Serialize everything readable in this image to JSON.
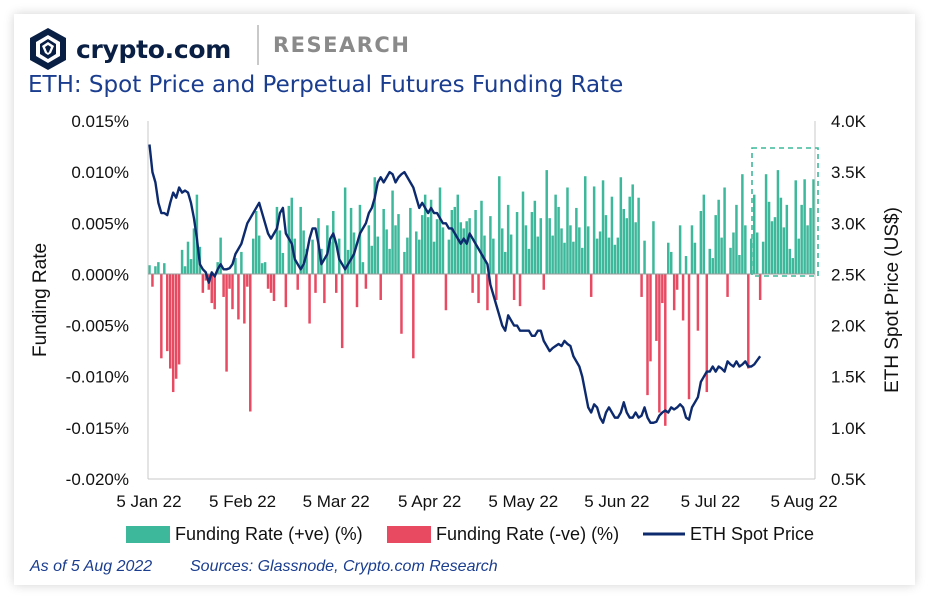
{
  "header": {
    "brand": "crypto.com",
    "section": "RESEARCH",
    "title": "ETH: Spot Price and Perpetual Futures Funding Rate"
  },
  "footer": {
    "as_of": "As of 5 Aug 2022",
    "sources": "Sources: Glassnode, Crypto.com Research"
  },
  "colors": {
    "positive": "#3db89a",
    "negative": "#e84a62",
    "price": "#0d2a6e",
    "brand": "#0a1f44",
    "title": "#1a3d8f",
    "highlight": "#3db89a"
  },
  "chart_data": {
    "type": "bar",
    "ylabel": "Funding Rate",
    "y2label": "ETH Spot Price (US$)",
    "ylim": [
      -0.02,
      0.015
    ],
    "y2lim": [
      500,
      4000
    ],
    "y_ticks": [
      "0.015%",
      "0.010%",
      "0.005%",
      "0.000%",
      "-0.005%",
      "-0.010%",
      "-0.015%",
      "-0.020%"
    ],
    "y2_ticks": [
      "4.0K",
      "3.5K",
      "3.0K",
      "2.5K",
      "2.0K",
      "1.5K",
      "1.0K",
      "0.5K"
    ],
    "x_ticks": [
      "5 Jan 22",
      "5 Feb 22",
      "5 Mar 22",
      "5 Apr 22",
      "5 May 22",
      "5 Jun 22",
      "5 Jul 22",
      "5 Aug 22"
    ],
    "legend": [
      "Funding Rate (+ve) (%)",
      "Funding Rate (-ve) (%)",
      "ETH Spot Price"
    ],
    "legend_position": "bottom",
    "grid": false,
    "highlight_box": "last 3 weeks (approx. 16 Jul – 5 Aug 2022)",
    "funding_rate_series": {
      "name": "Funding Rate (%)",
      "start": "5 Jan 22",
      "interval_days": 1,
      "values": [
        0.0009,
        -0.0012,
        0.0008,
        0.0012,
        -0.0082,
        0.0011,
        -0.0075,
        -0.0092,
        -0.0115,
        -0.0102,
        -0.0088,
        0.0024,
        0.0008,
        0.0032,
        0.0015,
        0.0045,
        0.0078,
        0.0027,
        -0.0018,
        -0.0006,
        -0.0015,
        -0.0028,
        -0.0034,
        0.0012,
        0.0036,
        -0.0022,
        -0.0095,
        -0.0014,
        -0.0034,
        0.0016,
        -0.0044,
        0.0022,
        -0.0048,
        -0.0012,
        -0.0134,
        0.0035,
        0.0062,
        0.0038,
        0.0011,
        0.0012,
        -0.0014,
        -0.0018,
        -0.0026,
        0.0066,
        0.0043,
        0.0021,
        -0.0032,
        0.0067,
        0.0075,
        0.0035,
        -0.0015,
        0.0066,
        0.0043,
        0.0025,
        -0.0048,
        0.0034,
        -0.0018,
        0.0055,
        0.0025,
        -0.0028,
        0.0048,
        0.0032,
        0.0062,
        -0.0018,
        0.0035,
        -0.0072,
        0.0085,
        0.0024,
        0.0065,
        0.0041,
        -0.0032,
        0.0068,
        0.0012,
        -0.0014,
        0.0048,
        0.0028,
        0.0095,
        0.0037,
        -0.0025,
        0.0064,
        0.0044,
        0.0025,
        0.0082,
        0.0048,
        0.0059,
        -0.0058,
        0.0022,
        0.0036,
        0.0065,
        -0.0082,
        0.0042,
        0.0034,
        0.0058,
        0.0078,
        0.0056,
        0.0073,
        0.0032,
        0.0054,
        0.0085,
        0.0046,
        -0.0035,
        0.0034,
        0.0063,
        0.0066,
        0.0078,
        0.0051,
        0.0045,
        0.0052,
        0.0055,
        -0.0018,
        0.0063,
        -0.0028,
        0.0072,
        0.0038,
        -0.0035,
        0.0057,
        0.0035,
        -0.0025,
        0.0096,
        0.0045,
        0.0022,
        0.0068,
        0.0039,
        -0.0025,
        0.0061,
        -0.0031,
        0.0081,
        0.0048,
        0.0025,
        0.0061,
        0.0072,
        0.0037,
        0.0055,
        -0.0015,
        0.0102,
        0.0055,
        0.0038,
        0.0078,
        0.0066,
        0.0045,
        0.0031,
        0.0085,
        0.0048,
        0.0032,
        0.0065,
        0.0046,
        0.0026,
        0.0096,
        0.0047,
        -0.0022,
        0.0086,
        0.0035,
        0.0042,
        0.0092,
        0.0058,
        0.0036,
        0.0076,
        0.0029,
        0.0036,
        0.0095,
        0.0064,
        0.0055,
        0.0076,
        0.0088,
        0.0051,
        0.0075,
        -0.0022,
        0.0033,
        -0.0118,
        -0.0085,
        0.0052,
        -0.0065,
        -0.0135,
        -0.0028,
        -0.0148,
        0.0031,
        0.0022,
        -0.0035,
        -0.0015,
        0.0048,
        -0.0045,
        0.0018,
        -0.0122,
        0.0048,
        0.0031,
        -0.0055,
        0.0062,
        0.0078,
        -0.0115,
        0.0025,
        0.0016,
        0.0058,
        0.0073,
        0.0036,
        0.0085,
        -0.0022,
        0.0026,
        0.0041,
        0.0068,
        0.0019,
        0.0098,
        0.0048,
        -0.0092,
        0.0035,
        0.0078,
        0.0041,
        -0.0025,
        0.0032,
        0.0098,
        0.0071,
        0.0052,
        0.0056,
        0.0102,
        0.0075,
        0.0046,
        0.0068,
        0.0025,
        0.0016,
        0.0092,
        0.0035,
        0.0068,
        0.0093,
        0.0048,
        0.0065,
        0.0093
      ]
    },
    "eth_price_series": {
      "name": "ETH Spot Price",
      "start": "5 Jan 22",
      "interval_days": 1,
      "values": [
        3770,
        3500,
        3400,
        3200,
        3100,
        3100,
        3080,
        3200,
        3300,
        3250,
        3350,
        3300,
        3320,
        3300,
        3200,
        3050,
        2850,
        2600,
        2550,
        2520,
        2420,
        2520,
        2480,
        2550,
        2600,
        2550,
        2550,
        2560,
        2600,
        2700,
        2750,
        2800,
        2900,
        3000,
        3050,
        3100,
        3150,
        3200,
        3100,
        3000,
        2900,
        2850,
        2900,
        2950,
        3100,
        3150,
        2900,
        2850,
        2800,
        2650,
        2600,
        2550,
        2600,
        2700,
        2850,
        2950,
        2950,
        2800,
        2600,
        2650,
        2700,
        2850,
        2900,
        2800,
        2650,
        2600,
        2550,
        2600,
        2650,
        2700,
        2800,
        2900,
        2950,
        3000,
        3100,
        3150,
        3250,
        3400,
        3450,
        3400,
        3450,
        3500,
        3480,
        3400,
        3450,
        3480,
        3500,
        3450,
        3400,
        3350,
        3250,
        3150,
        3200,
        3150,
        3100,
        3150,
        3100,
        3100,
        3050,
        3000,
        3000,
        2950,
        2950,
        2900,
        2850,
        2800,
        2850,
        2800,
        2900,
        2850,
        2800,
        2750,
        2700,
        2650,
        2600,
        2400,
        2300,
        2200,
        2100,
        2000,
        1950,
        2100,
        2050,
        2000,
        2000,
        1950,
        1950,
        1950,
        1950,
        1900,
        1900,
        1950,
        1950,
        1850,
        1800,
        1750,
        1780,
        1800,
        1820,
        1800,
        1850,
        1820,
        1800,
        1700,
        1650,
        1600,
        1500,
        1350,
        1200,
        1150,
        1230,
        1200,
        1100,
        1050,
        1150,
        1200,
        1150,
        1100,
        1100,
        1150,
        1250,
        1150,
        1100,
        1100,
        1150,
        1100,
        1120,
        1200,
        1100,
        1050,
        1050,
        1060,
        1120,
        1150,
        1170,
        1150,
        1200,
        1180,
        1200,
        1230,
        1200,
        1100,
        1080,
        1200,
        1250,
        1300,
        1450,
        1500,
        1550,
        1550,
        1600,
        1550,
        1600,
        1580,
        1550,
        1650,
        1620,
        1600,
        1650,
        1600,
        1620,
        1650,
        1600,
        1600,
        1620,
        1660,
        1700
      ]
    }
  }
}
